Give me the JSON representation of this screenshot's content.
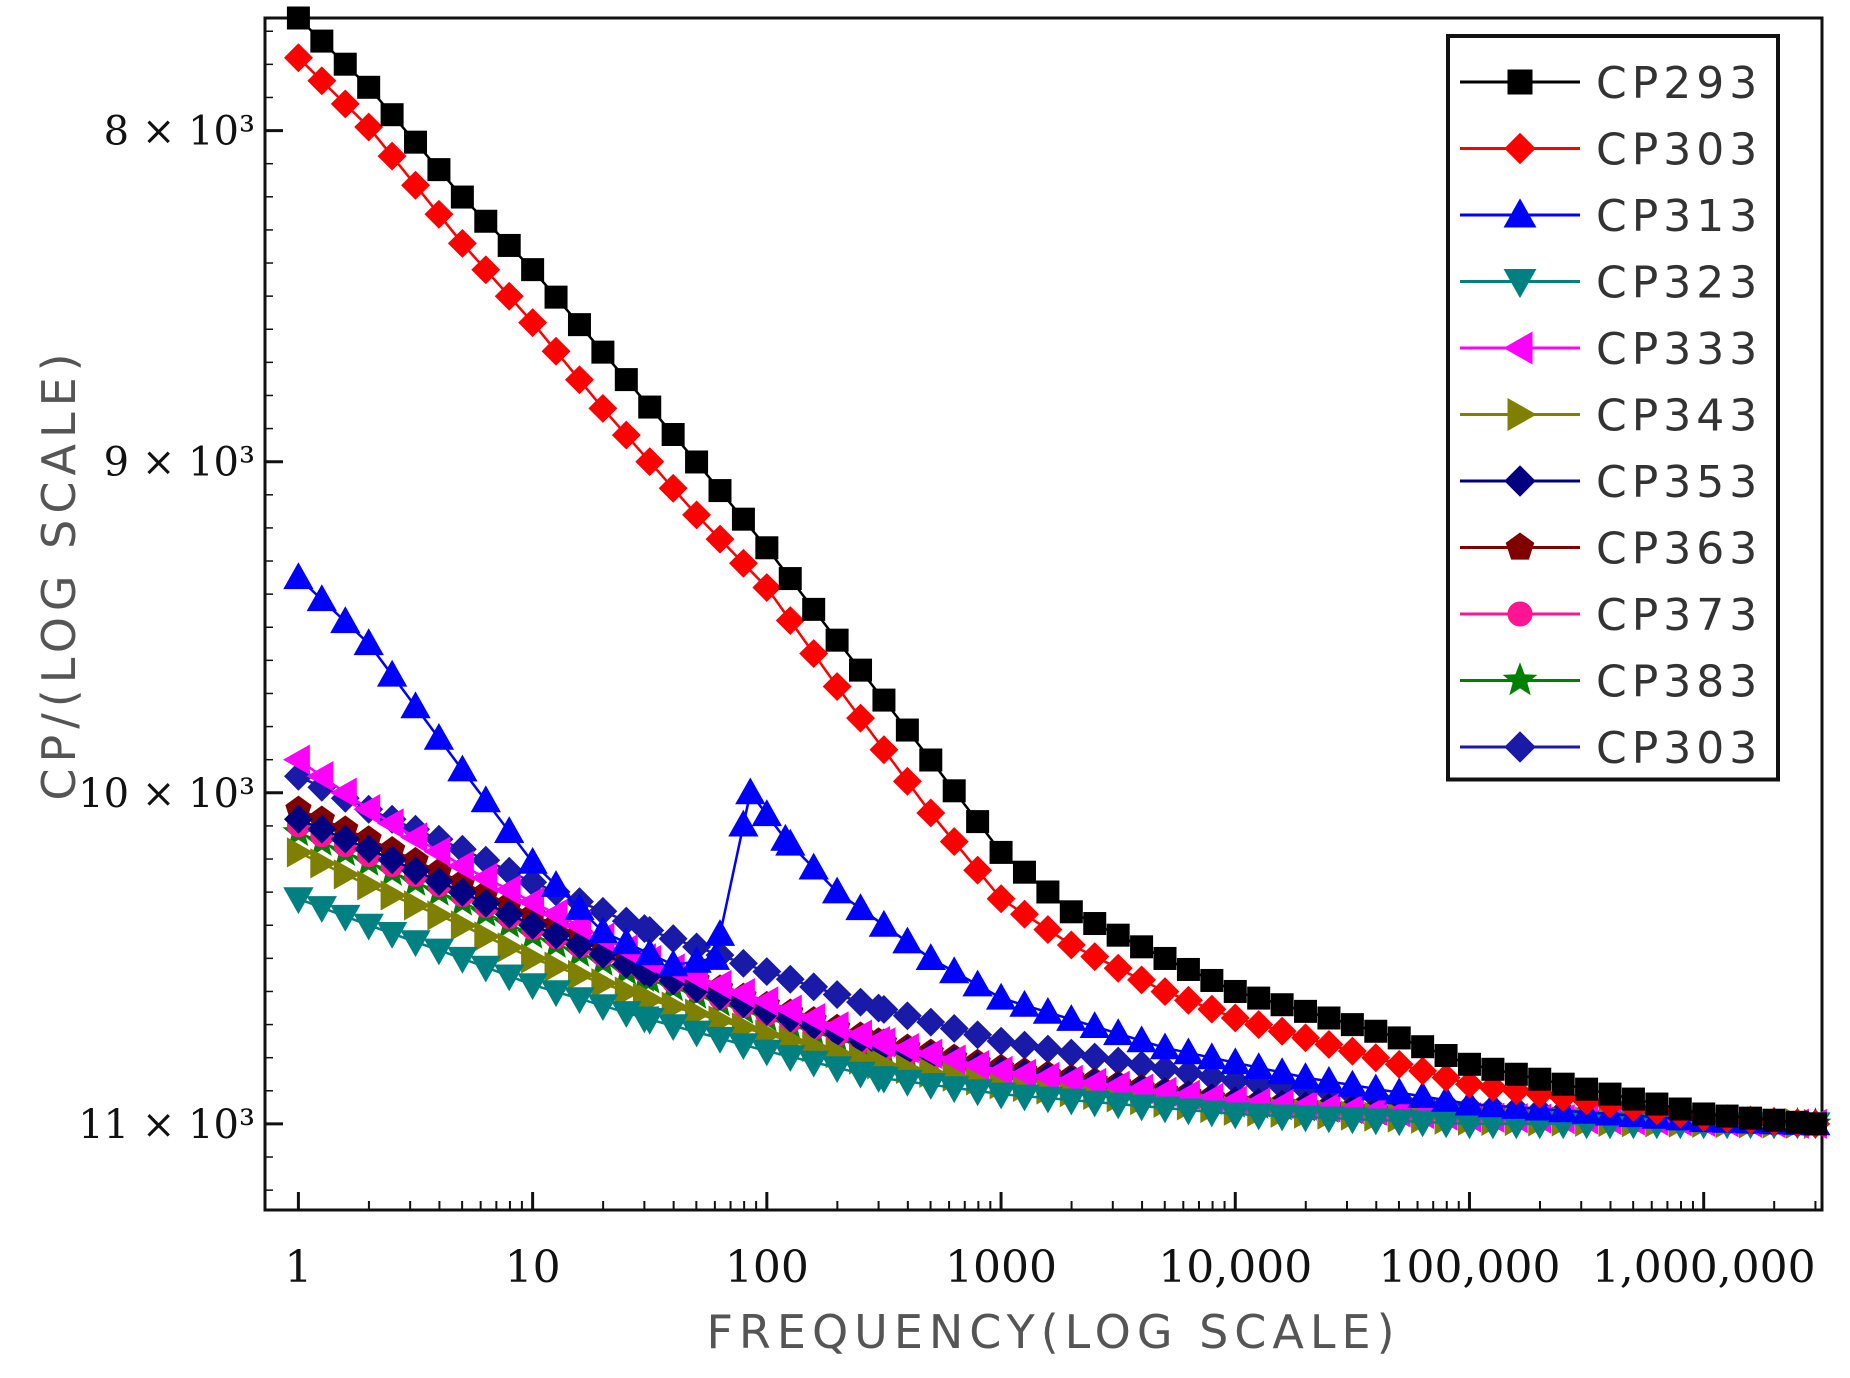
{
  "chart_data": {
    "type": "line",
    "title": "",
    "xlabel": "FREQUENCY(LOG SCALE)",
    "ylabel": "CP/(LOG SCALE)",
    "xscale": "log",
    "xlim": [
      0.72,
      3200000
    ],
    "ylim": [
      7.66,
      11.26
    ],
    "y_inverted": true,
    "x_ticks": [
      {
        "value": 1,
        "label": "1"
      },
      {
        "value": 10,
        "label": "10"
      },
      {
        "value": 100,
        "label": "100"
      },
      {
        "value": 1000,
        "label": "1000"
      },
      {
        "value": 10000,
        "label": "10,000"
      },
      {
        "value": 100000,
        "label": "100,000"
      },
      {
        "value": 1000000,
        "label": "1,000,000"
      }
    ],
    "y_ticks": [
      {
        "value": 8,
        "label": "8 × 10³"
      },
      {
        "value": 9,
        "label": "9 × 10³"
      },
      {
        "value": 10,
        "label": "10 × 10³"
      },
      {
        "value": 11,
        "label": "11 × 10³"
      }
    ],
    "legend_position": "top-right",
    "series": [
      {
        "name": "CP293",
        "color": "#000000",
        "marker": "square",
        "points": [
          [
            1,
            7.66
          ],
          [
            2,
            7.87
          ],
          [
            5,
            8.2
          ],
          [
            10,
            8.42
          ],
          [
            20,
            8.67
          ],
          [
            50,
            9.0
          ],
          [
            100,
            9.26
          ],
          [
            200,
            9.54
          ],
          [
            500,
            9.9
          ],
          [
            1000,
            10.18
          ],
          [
            2000,
            10.36
          ],
          [
            5000,
            10.5
          ],
          [
            10000,
            10.6
          ],
          [
            50000,
            10.74
          ],
          [
            100000,
            10.82
          ],
          [
            1000000,
            10.97
          ],
          [
            3000000,
            11.0
          ]
        ]
      },
      {
        "name": "CP303",
        "color": "#ff0000",
        "marker": "diamond",
        "points": [
          [
            1,
            7.78
          ],
          [
            2,
            7.99
          ],
          [
            5,
            8.34
          ],
          [
            10,
            8.58
          ],
          [
            20,
            8.84
          ],
          [
            50,
            9.16
          ],
          [
            100,
            9.38
          ],
          [
            200,
            9.68
          ],
          [
            500,
            10.06
          ],
          [
            1000,
            10.32
          ],
          [
            2000,
            10.46
          ],
          [
            5000,
            10.6
          ],
          [
            10000,
            10.68
          ],
          [
            50000,
            10.82
          ],
          [
            100000,
            10.88
          ],
          [
            1000000,
            10.98
          ],
          [
            3000000,
            11.0
          ]
        ]
      },
      {
        "name": "CP313",
        "color": "#0000ff",
        "marker": "triangle-up",
        "points": [
          [
            1,
            9.35
          ],
          [
            2,
            9.55
          ],
          [
            5,
            9.93
          ],
          [
            10,
            10.21
          ],
          [
            20,
            10.42
          ],
          [
            40,
            10.52
          ],
          [
            60,
            10.5
          ],
          [
            85,
            10.0
          ],
          [
            120,
            10.14
          ],
          [
            200,
            10.3
          ],
          [
            500,
            10.5
          ],
          [
            1000,
            10.62
          ],
          [
            5000,
            10.77
          ],
          [
            20000,
            10.86
          ],
          [
            100000,
            10.94
          ],
          [
            1000000,
            10.99
          ],
          [
            3000000,
            11.0
          ]
        ]
      },
      {
        "name": "CP323",
        "color": "#008080",
        "marker": "triangle-down",
        "points": [
          [
            1,
            10.32
          ],
          [
            2,
            10.4
          ],
          [
            5,
            10.5
          ],
          [
            10,
            10.58
          ],
          [
            30,
            10.68
          ],
          [
            100,
            10.78
          ],
          [
            300,
            10.86
          ],
          [
            1000,
            10.91
          ],
          [
            10000,
            10.97
          ],
          [
            100000,
            11.0
          ],
          [
            3000000,
            11.0
          ]
        ]
      },
      {
        "name": "CP333",
        "color": "#ff00ff",
        "marker": "triangle-left",
        "points": [
          [
            1,
            9.9
          ],
          [
            2,
            10.05
          ],
          [
            5,
            10.22
          ],
          [
            10,
            10.33
          ],
          [
            30,
            10.5
          ],
          [
            100,
            10.63
          ],
          [
            300,
            10.75
          ],
          [
            1000,
            10.84
          ],
          [
            10000,
            10.93
          ],
          [
            100000,
            10.98
          ],
          [
            3000000,
            11.0
          ]
        ]
      },
      {
        "name": "CP343",
        "color": "#808000",
        "marker": "triangle-right",
        "points": [
          [
            1,
            10.18
          ],
          [
            2,
            10.28
          ],
          [
            5,
            10.4
          ],
          [
            10,
            10.5
          ],
          [
            30,
            10.62
          ],
          [
            100,
            10.73
          ],
          [
            300,
            10.82
          ],
          [
            1000,
            10.88
          ],
          [
            10000,
            10.96
          ],
          [
            100000,
            10.99
          ],
          [
            3000000,
            11.0
          ]
        ]
      },
      {
        "name": "CP353",
        "color": "#000080",
        "marker": "diamond",
        "points": [
          [
            1,
            10.08
          ],
          [
            2,
            10.17
          ],
          [
            5,
            10.3
          ],
          [
            10,
            10.4
          ],
          [
            30,
            10.54
          ],
          [
            100,
            10.66
          ],
          [
            300,
            10.76
          ],
          [
            1000,
            10.84
          ],
          [
            10000,
            10.93
          ],
          [
            100000,
            10.98
          ],
          [
            3000000,
            11.0
          ]
        ]
      },
      {
        "name": "CP363",
        "color": "#800000",
        "marker": "pentagon",
        "points": [
          [
            1,
            10.05
          ],
          [
            2,
            10.14
          ],
          [
            5,
            10.27
          ],
          [
            10,
            10.37
          ],
          [
            30,
            10.51
          ],
          [
            100,
            10.64
          ],
          [
            300,
            10.75
          ],
          [
            1000,
            10.83
          ],
          [
            10000,
            10.93
          ],
          [
            100000,
            10.98
          ],
          [
            3000000,
            11.0
          ]
        ]
      },
      {
        "name": "CP373",
        "color": "#ff1493",
        "marker": "circle",
        "points": [
          [
            1,
            10.1
          ],
          [
            2,
            10.19
          ],
          [
            5,
            10.31
          ],
          [
            10,
            10.41
          ],
          [
            30,
            10.54
          ],
          [
            100,
            10.67
          ],
          [
            300,
            10.77
          ],
          [
            1000,
            10.85
          ],
          [
            10000,
            10.94
          ],
          [
            100000,
            10.98
          ],
          [
            3000000,
            11.0
          ]
        ]
      },
      {
        "name": "CP383",
        "color": "#008000",
        "marker": "star",
        "points": [
          [
            1,
            10.12
          ],
          [
            2,
            10.21
          ],
          [
            5,
            10.33
          ],
          [
            10,
            10.43
          ],
          [
            30,
            10.56
          ],
          [
            100,
            10.68
          ],
          [
            300,
            10.78
          ],
          [
            1000,
            10.86
          ],
          [
            10000,
            10.94
          ],
          [
            100000,
            10.98
          ],
          [
            3000000,
            11.0
          ]
        ]
      },
      {
        "name": "CP303",
        "color": "#1a1aa8",
        "marker": "diamond",
        "points": [
          [
            1,
            9.95
          ],
          [
            2,
            10.05
          ],
          [
            5,
            10.17
          ],
          [
            10,
            10.27
          ],
          [
            30,
            10.41
          ],
          [
            100,
            10.54
          ],
          [
            300,
            10.65
          ],
          [
            1000,
            10.75
          ],
          [
            10000,
            10.87
          ],
          [
            100000,
            10.95
          ],
          [
            3000000,
            11.0
          ]
        ]
      }
    ]
  }
}
